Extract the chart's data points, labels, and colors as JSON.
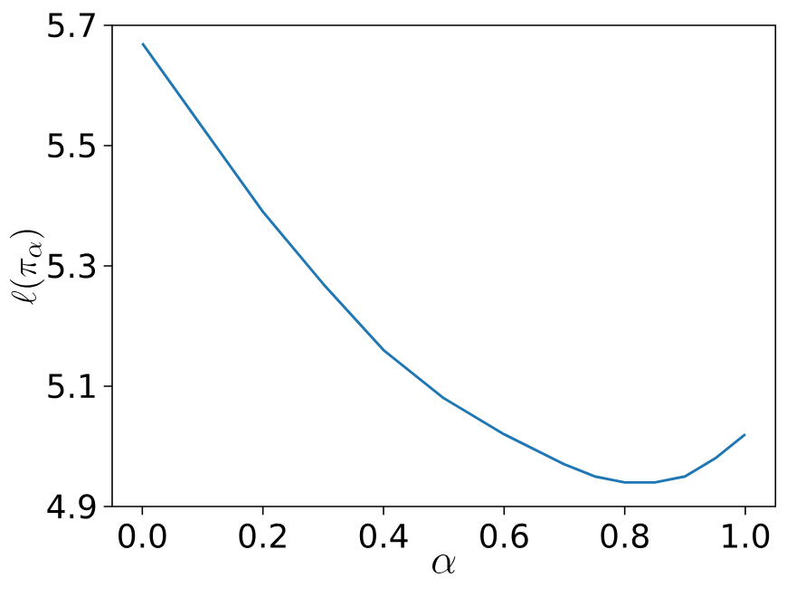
{
  "chart_data": {
    "type": "line",
    "xlabel": "\\alpha",
    "ylabel": "\\ell(\\pi_\\alpha)",
    "x": [
      0,
      0.1,
      0.2,
      0.3,
      0.4,
      0.5,
      0.6,
      0.7,
      0.75,
      0.8,
      0.85,
      0.9,
      0.95,
      1.0
    ],
    "series": [
      {
        "color": "#1f77b4",
        "values": [
          5.67,
          5.53,
          5.39,
          5.27,
          5.16,
          5.08,
          5.02,
          4.97,
          4.95,
          4.94,
          4.94,
          4.95,
          4.98,
          5.02
        ]
      }
    ],
    "xlim": [
      -0.05,
      1.05
    ],
    "ylim": [
      4.9,
      5.7
    ],
    "xticks": [
      {
        "value": 0,
        "label": "0.0"
      },
      {
        "value": 0.2,
        "label": "0.2"
      },
      {
        "value": 0.4,
        "label": "0.4"
      },
      {
        "value": 0.6,
        "label": "0.6"
      },
      {
        "value": 0.8,
        "label": "0.8"
      },
      {
        "value": 1.0,
        "label": "1.0"
      }
    ],
    "yticks": [
      4.9,
      5.1,
      5.3,
      5.5,
      5.7
    ]
  }
}
